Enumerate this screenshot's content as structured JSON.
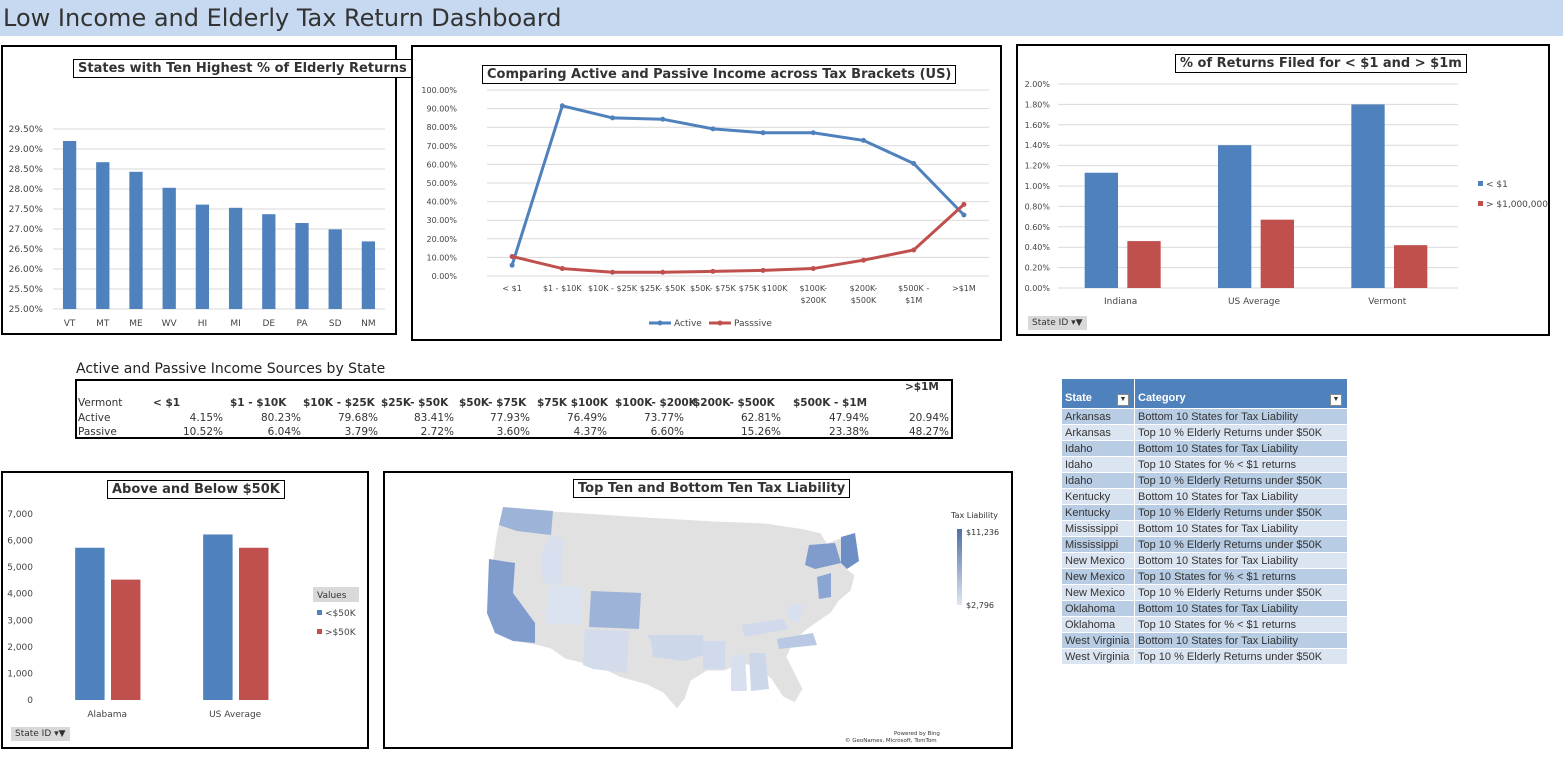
{
  "page_title": "Low Income and Elderly Tax Return Dashboard",
  "chart_data": [
    {
      "type": "bar",
      "title": "States with Ten Highest % of Elderly Returns",
      "categories": [
        "VT",
        "MT",
        "ME",
        "WV",
        "HI",
        "MI",
        "DE",
        "PA",
        "SD",
        "NM"
      ],
      "values": [
        29.2,
        28.67,
        28.43,
        28.03,
        27.61,
        27.53,
        27.37,
        27.15,
        26.99,
        26.69
      ],
      "ylim": [
        25.0,
        29.5
      ],
      "yticks": [
        "25.00%",
        "25.50%",
        "26.00%",
        "26.50%",
        "27.00%",
        "27.50%",
        "28.00%",
        "28.50%",
        "29.00%",
        "29.50%"
      ],
      "color": "#4f81bd",
      "grid": true
    },
    {
      "type": "line",
      "title": "Comparing Active and Passive Income across Tax Brackets (US)",
      "categories": [
        "< $1",
        "$1 - $10K",
        "$10K - $25K",
        "$25K- $50K",
        "$50K- $75K",
        "$75K $100K",
        "$100K- $200K",
        "$200K- $500K",
        "$500K - $1M",
        ">$1M"
      ],
      "category_lines": [
        [
          "< $1"
        ],
        [
          "$1 - $10K"
        ],
        [
          "$10K - $25K"
        ],
        [
          "$25K- $50K"
        ],
        [
          "$50K- $75K"
        ],
        [
          "$75K $100K"
        ],
        [
          "$100K-",
          "$200K"
        ],
        [
          "$200K-",
          "$500K"
        ],
        [
          "$500K -",
          "$1M"
        ],
        [
          ">$1M"
        ]
      ],
      "series": [
        {
          "name": "Active",
          "color": "#4f81bd",
          "values": [
            5.8,
            91.5,
            85.0,
            84.3,
            79.1,
            77.0,
            77.0,
            72.9,
            60.5,
            32.8
          ]
        },
        {
          "name": "Passsive",
          "color": "#c0504d",
          "values": [
            10.5,
            4.0,
            2.0,
            2.0,
            2.5,
            3.0,
            4.0,
            8.5,
            14.0,
            38.5
          ]
        }
      ],
      "ylim": [
        0,
        100
      ],
      "yticks": [
        "0.00%",
        "10.00%",
        "20.00%",
        "30.00%",
        "40.00%",
        "50.00%",
        "60.00%",
        "70.00%",
        "80.00%",
        "90.00%",
        "100.00%"
      ],
      "legend": "bottom",
      "grid": true
    },
    {
      "type": "bar",
      "title": "% of Returns Filed for < $1 and > $1m",
      "categories": [
        "Indiana",
        "US Average",
        "Vermont"
      ],
      "series": [
        {
          "name": "< $1",
          "color": "#4f81bd",
          "values": [
            1.13,
            1.4,
            1.8
          ]
        },
        {
          "name": "> $1,000,000",
          "color": "#c0504d",
          "values": [
            0.46,
            0.67,
            0.42
          ]
        }
      ],
      "ylim": [
        0,
        2.0
      ],
      "yticks": [
        "0.00%",
        "0.20%",
        "0.40%",
        "0.60%",
        "0.80%",
        "1.00%",
        "1.20%",
        "1.40%",
        "1.60%",
        "1.80%",
        "2.00%"
      ],
      "legend": "right",
      "grid": true
    },
    {
      "type": "bar",
      "title": "Above and Below $50K",
      "categories": [
        "Alabama",
        "US Average"
      ],
      "series": [
        {
          "name": "<$50K",
          "color": "#4f81bd",
          "values": [
            5730,
            6230
          ]
        },
        {
          "name": ">$50K",
          "color": "#c0504d",
          "values": [
            4530,
            5730
          ]
        }
      ],
      "ylim": [
        0,
        7000
      ],
      "yticks": [
        "0",
        "1,000",
        "2,000",
        "3,000",
        "4,000",
        "5,000",
        "6,000",
        "7,000"
      ],
      "legend_title": "Values",
      "legend": "right",
      "grid": false
    }
  ],
  "slicers": {
    "state_id": "State ID"
  },
  "pivot": {
    "title": "Active and Passive Income Sources by State",
    "state": "Vermont",
    "headers": [
      "< $1",
      "$1 - $10K",
      "$10K - $25K",
      "$25K- $50K",
      "$50K- $75K",
      "$75K $100K",
      "$100K- $200K",
      "$200K- $500K",
      "$500K - $1M",
      ">$1M"
    ],
    "rows": [
      {
        "label": "Active",
        "values": [
          "4.15%",
          "80.23%",
          "79.68%",
          "83.41%",
          "77.93%",
          "76.49%",
          "73.77%",
          "62.81%",
          "47.94%",
          "20.94%"
        ]
      },
      {
        "label": "Passive",
        "values": [
          "10.52%",
          "6.04%",
          "3.79%",
          "2.72%",
          "3.60%",
          "4.37%",
          "6.60%",
          "15.26%",
          "23.38%",
          "48.27%"
        ]
      }
    ]
  },
  "map": {
    "title": "Top Ten and Bottom Ten Tax Liability",
    "legend_title": "Tax Liability",
    "legend_max": "$11,236",
    "legend_min": "$2,796",
    "credit_line1": "Powered by Bing",
    "credit_line2": "© GeoNames, Microsoft, TomTom"
  },
  "category_table": {
    "headers": [
      "State",
      "Category"
    ],
    "rows": [
      [
        "Arkansas",
        "Bottom 10 States for Tax Liability"
      ],
      [
        "Arkansas",
        "Top 10 % Elderly Returns under $50K"
      ],
      [
        "Idaho",
        "Bottom 10 States for Tax Liability"
      ],
      [
        "Idaho",
        "Top 10 States for % < $1 returns"
      ],
      [
        "Idaho",
        "Top 10 % Elderly Returns under $50K"
      ],
      [
        "Kentucky",
        "Bottom 10 States for Tax Liability"
      ],
      [
        "Kentucky",
        "Top 10 % Elderly Returns under $50K"
      ],
      [
        "Mississippi",
        "Bottom 10 States for Tax Liability"
      ],
      [
        "Mississippi",
        "Top 10 % Elderly Returns under $50K"
      ],
      [
        "New Mexico",
        "Bottom 10 States for Tax Liability"
      ],
      [
        "New Mexico",
        "Top 10 States for % < $1 returns"
      ],
      [
        "New Mexico",
        "Top 10 % Elderly Returns under $50K"
      ],
      [
        "Oklahoma",
        "Bottom 10 States for Tax Liability"
      ],
      [
        "Oklahoma",
        "Top 10 States for % < $1 returns"
      ],
      [
        "West Virginia",
        "Bottom 10 States for Tax Liability"
      ],
      [
        "West Virginia",
        "Top 10 % Elderly Returns under $50K"
      ]
    ]
  }
}
